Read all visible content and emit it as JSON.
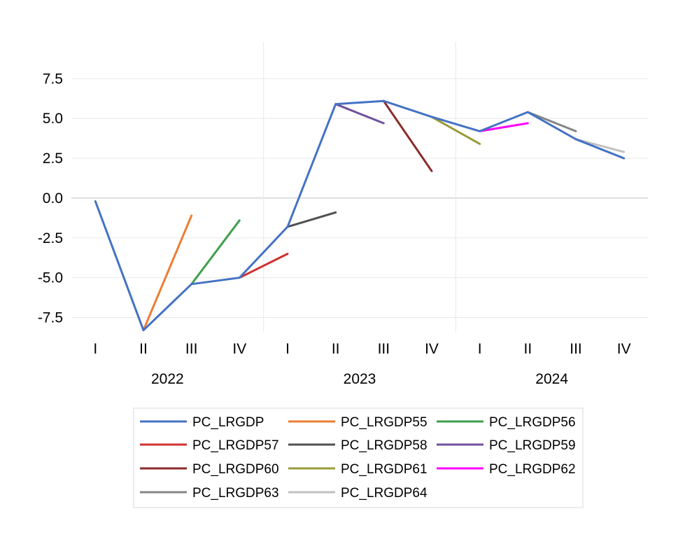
{
  "chart_data": {
    "type": "line",
    "title": "",
    "xlabel": "",
    "ylabel": "",
    "x": [
      {
        "quarter": "I",
        "year": "2022"
      },
      {
        "quarter": "II",
        "year": "2022"
      },
      {
        "quarter": "III",
        "year": "2022"
      },
      {
        "quarter": "IV",
        "year": "2022"
      },
      {
        "quarter": "I",
        "year": "2023"
      },
      {
        "quarter": "II",
        "year": "2023"
      },
      {
        "quarter": "III",
        "year": "2023"
      },
      {
        "quarter": "IV",
        "year": "2023"
      },
      {
        "quarter": "I",
        "year": "2024"
      },
      {
        "quarter": "II",
        "year": "2024"
      },
      {
        "quarter": "III",
        "year": "2024"
      },
      {
        "quarter": "IV",
        "year": "2024"
      }
    ],
    "years": [
      "2022",
      "2023",
      "2024"
    ],
    "ylim": [
      -8.4,
      9.8
    ],
    "yticks": [
      7.5,
      5.0,
      2.5,
      0.0,
      -2.5,
      -5.0,
      -7.5
    ],
    "ytick_labels": [
      "7.5",
      "5.0",
      "2.5",
      "0.0",
      "-2.5",
      "-5.0",
      "-7.5"
    ],
    "grid": true,
    "legend_position": "bottom",
    "series": [
      {
        "name": "PC_LRGDP",
        "color": "#4472C4",
        "values": [
          -0.2,
          -8.3,
          -5.4,
          -5.0,
          -1.8,
          5.9,
          6.1,
          5.1,
          4.2,
          5.4,
          3.7,
          2.5
        ]
      },
      {
        "name": "PC_LRGDP55",
        "color": "#ED7D31",
        "values": [
          null,
          -8.3,
          -1.1,
          null,
          null,
          null,
          null,
          null,
          null,
          null,
          null,
          null
        ]
      },
      {
        "name": "PC_LRGDP56",
        "color": "#3F9E4E",
        "values": [
          null,
          null,
          -5.4,
          -1.4,
          null,
          null,
          null,
          null,
          null,
          null,
          null,
          null
        ]
      },
      {
        "name": "PC_LRGDP57",
        "color": "#D03030",
        "values": [
          null,
          null,
          null,
          -5.0,
          -3.5,
          null,
          null,
          null,
          null,
          null,
          null,
          null
        ]
      },
      {
        "name": "PC_LRGDP58",
        "color": "#505050",
        "values": [
          null,
          null,
          null,
          null,
          -1.8,
          -0.9,
          null,
          null,
          null,
          null,
          null,
          null
        ]
      },
      {
        "name": "PC_LRGDP59",
        "color": "#70509E",
        "values": [
          null,
          null,
          null,
          null,
          null,
          5.9,
          4.7,
          null,
          null,
          null,
          null,
          null
        ]
      },
      {
        "name": "PC_LRGDP60",
        "color": "#8B2A2A",
        "values": [
          null,
          null,
          null,
          null,
          null,
          null,
          6.1,
          1.7,
          null,
          null,
          null,
          null
        ]
      },
      {
        "name": "PC_LRGDP61",
        "color": "#9A9A3A",
        "values": [
          null,
          null,
          null,
          null,
          null,
          null,
          null,
          5.1,
          3.4,
          null,
          null,
          null
        ]
      },
      {
        "name": "PC_LRGDP62",
        "color": "#FF00FF",
        "values": [
          null,
          null,
          null,
          null,
          null,
          null,
          null,
          null,
          4.2,
          4.7,
          null,
          null
        ]
      },
      {
        "name": "PC_LRGDP63",
        "color": "#858585",
        "values": [
          null,
          null,
          null,
          null,
          null,
          null,
          null,
          null,
          null,
          5.4,
          4.2,
          null
        ]
      },
      {
        "name": "PC_LRGDP64",
        "color": "#C0C0C0",
        "values": [
          null,
          null,
          null,
          null,
          null,
          null,
          null,
          null,
          null,
          null,
          3.7,
          2.9
        ]
      }
    ]
  }
}
